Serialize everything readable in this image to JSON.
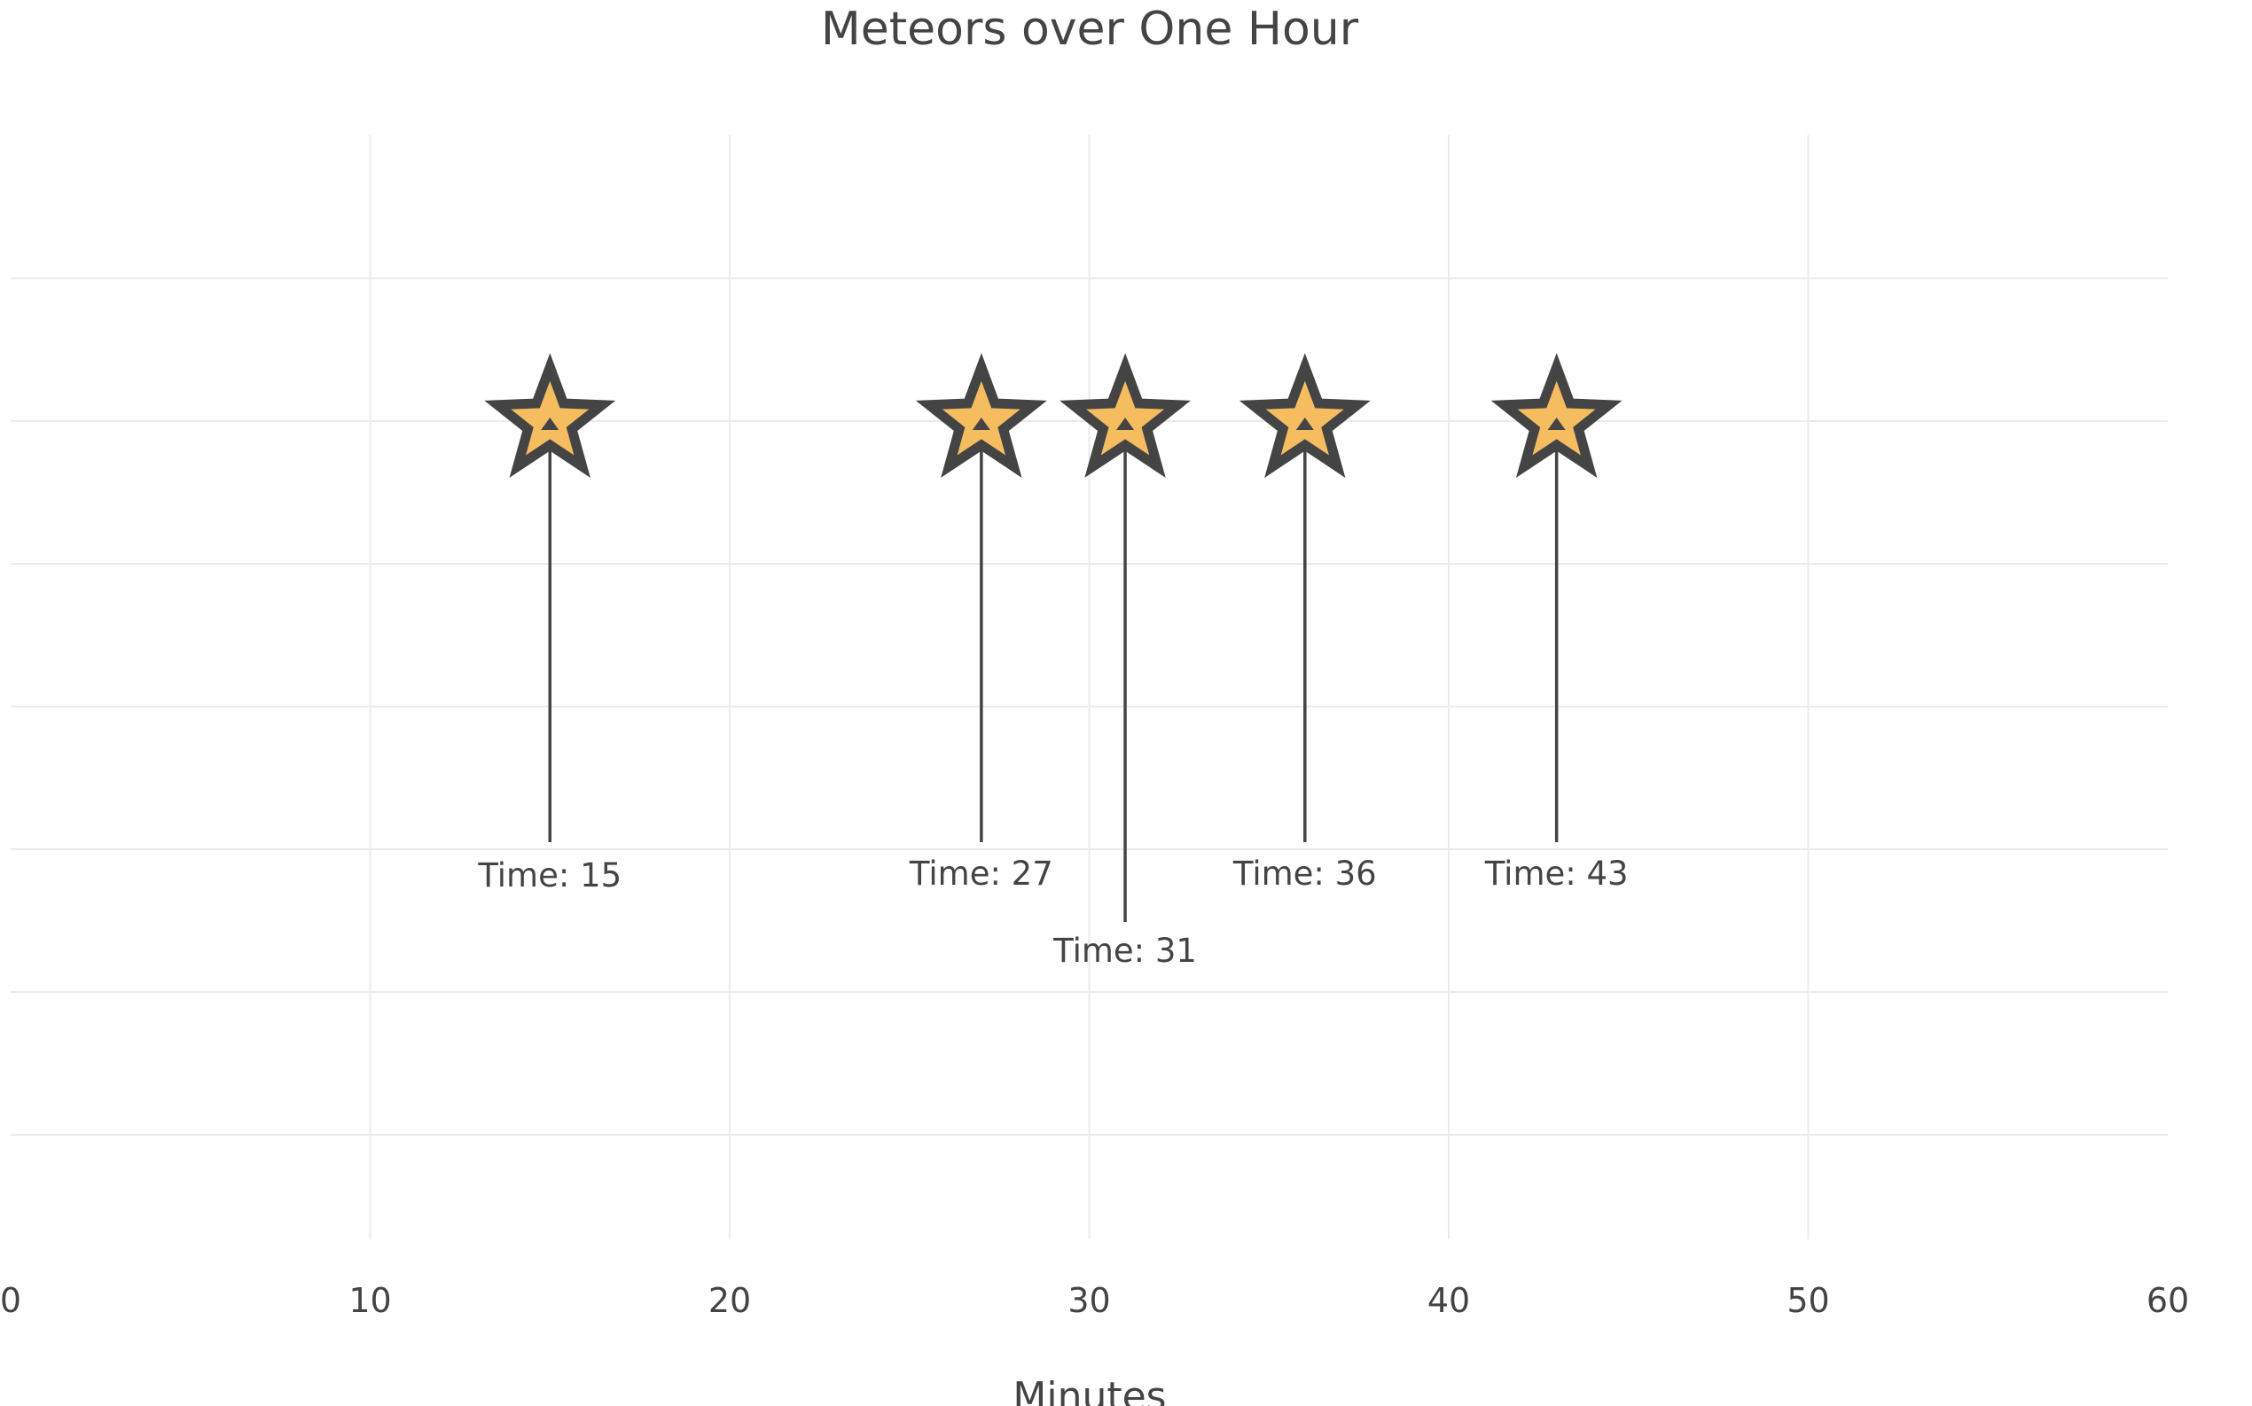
{
  "chart_data": {
    "type": "scatter",
    "title": "Meteors over One Hour",
    "xlabel": "Minutes",
    "ylabel": "",
    "xlim": [
      0,
      60
    ],
    "xticks": [
      0,
      10,
      20,
      30,
      40,
      50,
      60
    ],
    "grid": true,
    "marker": "star",
    "marker_color": "#f6bd60",
    "marker_outline_color": "#444444",
    "series": [
      {
        "x": [
          15,
          27,
          31,
          36,
          43
        ],
        "annotations": [
          "Time: 15",
          "Time: 27",
          "Time: 31",
          "Time: 36",
          "Time: 43"
        ]
      }
    ]
  }
}
